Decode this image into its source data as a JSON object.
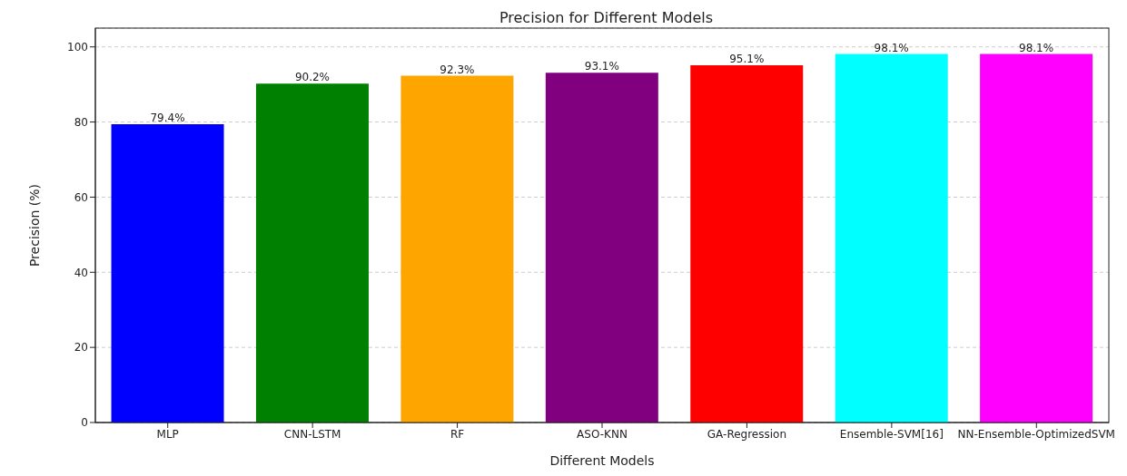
{
  "chart_data": {
    "type": "bar",
    "title": "Precision for Different Models",
    "xlabel": "Different Models",
    "ylabel": "Precision (%)",
    "categories": [
      "MLP",
      "CNN-LSTM",
      "RF",
      "ASO-KNN",
      "GA-Regression",
      "Ensemble-SVM[16]",
      "NN-Ensemble-OptimizedSVM"
    ],
    "values": [
      79.4,
      90.2,
      92.3,
      93.1,
      95.1,
      98.1,
      98.1
    ],
    "colors": [
      "#0000ff",
      "#008000",
      "#ffa500",
      "#800080",
      "#ff0000",
      "#00ffff",
      "#ff00ff"
    ],
    "value_labels": [
      "79.4%",
      "90.2%",
      "92.3%",
      "93.1%",
      "95.1%",
      "98.1%",
      "98.1%"
    ],
    "ylim": [
      0,
      105
    ],
    "yticks": [
      0,
      20,
      40,
      60,
      80,
      100
    ],
    "grid": "y"
  }
}
